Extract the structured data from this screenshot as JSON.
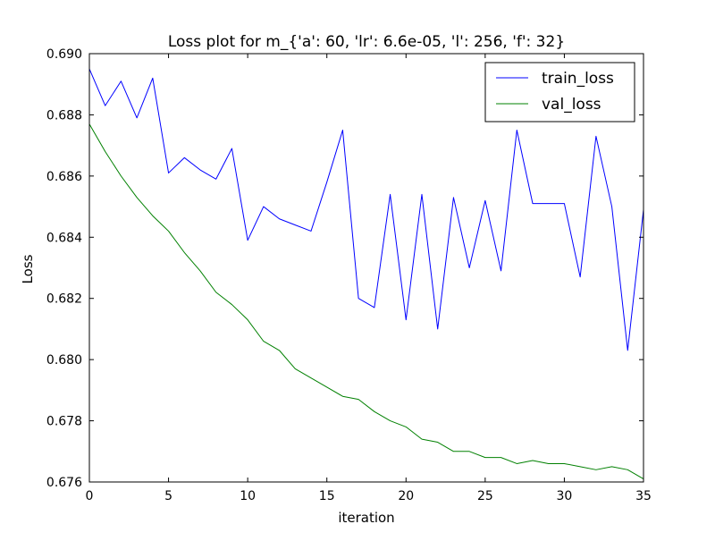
{
  "chart_data": {
    "type": "line",
    "title": "Loss plot for m_{'a': 60, 'lr': 6.6e-05, 'l': 256, 'f': 32}",
    "xlabel": "iteration",
    "ylabel": "Loss",
    "xlim": [
      0,
      35
    ],
    "ylim": [
      0.676,
      0.69
    ],
    "xticks": [
      0,
      5,
      10,
      15,
      20,
      25,
      30,
      35
    ],
    "yticks": [
      0.676,
      0.678,
      0.68,
      0.682,
      0.684,
      0.686,
      0.688,
      0.69
    ],
    "xtick_labels": [
      "0",
      "5",
      "10",
      "15",
      "20",
      "25",
      "30",
      "35"
    ],
    "ytick_labels": [
      "0.676",
      "0.678",
      "0.680",
      "0.682",
      "0.684",
      "0.686",
      "0.688",
      "0.690"
    ],
    "grid": false,
    "legend_position": "top-right",
    "x": [
      0,
      1,
      2,
      3,
      4,
      5,
      6,
      7,
      8,
      9,
      10,
      11,
      12,
      13,
      14,
      15,
      16,
      17,
      18,
      19,
      20,
      21,
      22,
      23,
      24,
      25,
      26,
      27,
      28,
      29,
      30,
      31,
      32,
      33,
      34,
      35
    ],
    "series": [
      {
        "name": "train_loss",
        "color": "#0000ff",
        "values": [
          0.6895,
          0.6883,
          0.6891,
          0.6879,
          0.6892,
          0.6861,
          0.6866,
          0.6862,
          0.6859,
          0.6869,
          0.6839,
          0.685,
          0.6846,
          0.6844,
          0.6842,
          0.6858,
          0.6875,
          0.682,
          0.6817,
          0.6854,
          0.6813,
          0.6854,
          0.681,
          0.6853,
          0.683,
          0.6852,
          0.6829,
          0.6875,
          0.6851,
          0.6851,
          0.6851,
          0.6827,
          0.6873,
          0.685,
          0.6803,
          0.6849
        ]
      },
      {
        "name": "val_loss",
        "color": "#008000",
        "values": [
          0.6877,
          0.6868,
          0.686,
          0.6853,
          0.6847,
          0.6842,
          0.6835,
          0.6829,
          0.6822,
          0.6818,
          0.6813,
          0.6806,
          0.6803,
          0.6797,
          0.6794,
          0.6791,
          0.6788,
          0.6787,
          0.6783,
          0.678,
          0.6778,
          0.6774,
          0.6773,
          0.677,
          0.677,
          0.6768,
          0.6768,
          0.6766,
          0.6767,
          0.6766,
          0.6766,
          0.6765,
          0.6764,
          0.6765,
          0.6764,
          0.6761
        ]
      }
    ]
  }
}
